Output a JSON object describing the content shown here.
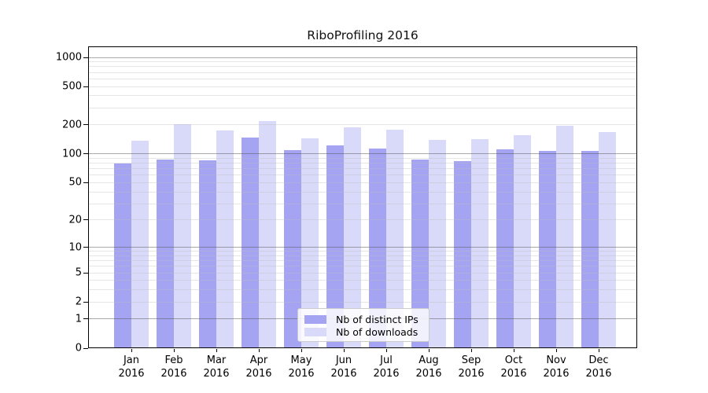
{
  "figure": {
    "title": "RiboProfiling 2016"
  },
  "legend": {
    "items": [
      {
        "label": "Nb of distinct IPs",
        "color": "#a4a4f2"
      },
      {
        "label": "Nb of downloads",
        "color": "#d9d9f9"
      }
    ]
  },
  "chart_data": {
    "type": "bar",
    "title": "RiboProfiling 2016",
    "categories": [
      "Jan 2016",
      "Feb 2016",
      "Mar 2016",
      "Apr 2016",
      "May 2016",
      "Jun 2016",
      "Jul 2016",
      "Aug 2016",
      "Sep 2016",
      "Oct 2016",
      "Nov 2016",
      "Dec 2016"
    ],
    "x_tick_month": [
      "Jan",
      "Feb",
      "Mar",
      "Apr",
      "May",
      "Jun",
      "Jul",
      "Aug",
      "Sep",
      "Oct",
      "Nov",
      "Dec"
    ],
    "x_tick_year": "2016",
    "series": [
      {
        "name": "Nb of distinct IPs",
        "color": "#a4a4f2",
        "values": [
          80,
          87,
          86,
          147,
          109,
          122,
          114,
          87,
          84,
          111,
          107,
          107
        ]
      },
      {
        "name": "Nb of downloads",
        "color": "#d9d9f9",
        "values": [
          138,
          203,
          177,
          219,
          146,
          188,
          180,
          139,
          142,
          158,
          196,
          168
        ]
      }
    ],
    "yscale": "log10(1+x)",
    "yticks": [
      0,
      1,
      2,
      5,
      10,
      20,
      50,
      100,
      200,
      500,
      1000
    ],
    "ylim": [
      0,
      1300
    ],
    "grid": {
      "major_at": [
        1,
        10,
        100,
        1000
      ],
      "minor": "mantissas 2-9 of each decade"
    },
    "legend_position": "inside-bottom-center"
  },
  "colors": {
    "distinct_ips": "#a4a4f2",
    "downloads": "#d9d9f9",
    "axis": "#000000",
    "major_grid": "#b0b0b0",
    "minor_grid": "#e8e8e8",
    "background": "#ffffff"
  }
}
